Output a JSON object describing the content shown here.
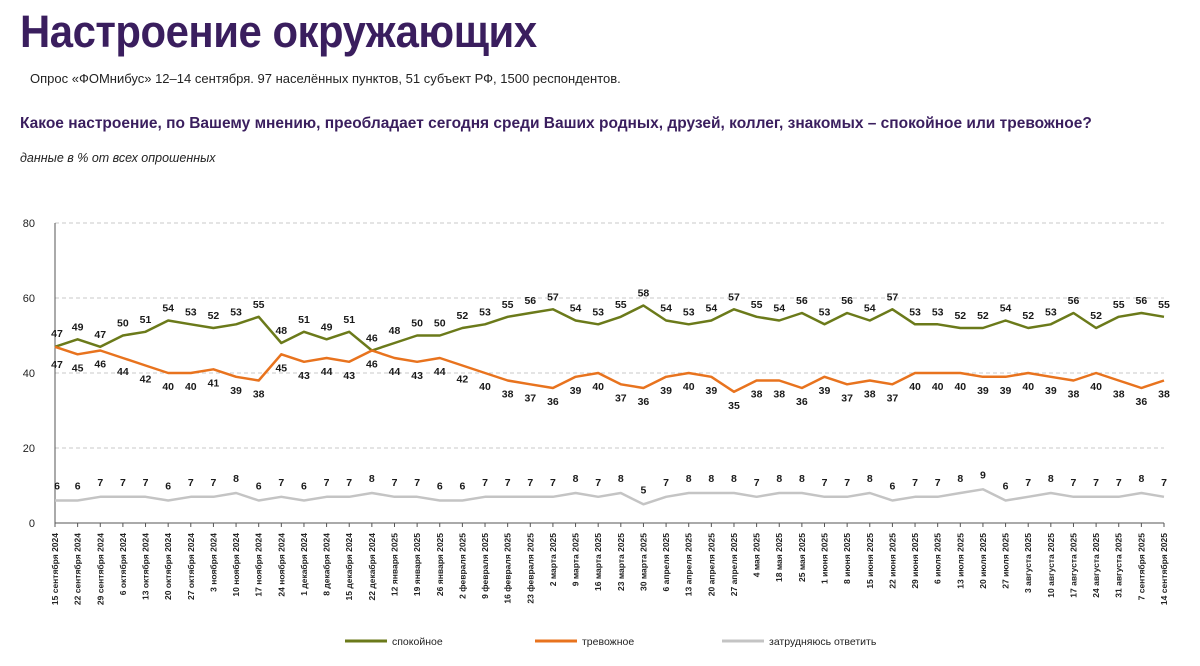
{
  "header": {
    "title": "Настроение окружающих",
    "subtitle": "Опрос «ФОМнибус» 12–14 сентября. 97 населённых пунктов, 51 субъект РФ, 1500 респондентов.",
    "question": "Какое настроение, по Вашему мнению, преобладает сегодня среди Ваших родных, друзей, коллег, знакомых – спокойное или тревожное?",
    "note": "данные в % от всех опрошенных"
  },
  "chart_data": {
    "type": "line",
    "title": "Настроение окружающих",
    "xlabel": "",
    "ylabel": "",
    "ylim": [
      0,
      80
    ],
    "yticks": [
      0,
      20,
      40,
      60,
      80
    ],
    "grid": "horizontal dashed",
    "legend_position": "bottom",
    "categories": [
      "15 сентября 2024",
      "22 сентября 2024",
      "29 сентября 2024",
      "6 октября 2024",
      "13 октября 2024",
      "20 октября 2024",
      "27 октября 2024",
      "3 ноября 2024",
      "10 ноября 2024",
      "17 ноября 2024",
      "24 ноября 2024",
      "1 декабря 2024",
      "8 декабря 2024",
      "15 декабря 2024",
      "22 декабря 2024",
      "12 января 2025",
      "19 января 2025",
      "26 января 2025",
      "2 февраля 2025",
      "9 февраля 2025",
      "16 февраля 2025",
      "23 февраля 2025",
      "2 марта 2025",
      "9 марта 2025",
      "16 марта 2025",
      "23 марта 2025",
      "30 марта 2025",
      "6 апреля 2025",
      "13 апреля 2025",
      "20 апреля 2025",
      "27 апреля 2025",
      "4 мая 2025",
      "18 мая 2025",
      "25 мая 2025",
      "1 июня 2025",
      "8 июня 2025",
      "15 июня 2025",
      "22 июня 2025",
      "29 июня 2025",
      "6 июля 2025",
      "13 июля 2025",
      "20 июля 2025",
      "27 июля 2025",
      "3 августа 2025",
      "10 августа 2025",
      "17 августа 2025",
      "24 августа 2025",
      "31 августа 2025",
      "7 сентября 2025",
      "14 сентября 2025"
    ],
    "series": [
      {
        "name": "спокойное",
        "color": "#6b7a1a",
        "values": [
          47,
          49,
          47,
          50,
          51,
          54,
          53,
          52,
          53,
          55,
          48,
          51,
          49,
          51,
          46,
          48,
          50,
          50,
          52,
          53,
          55,
          56,
          57,
          54,
          53,
          55,
          58,
          54,
          53,
          54,
          57,
          55,
          54,
          56,
          53,
          56,
          54,
          57,
          53,
          53,
          52,
          52,
          54,
          52,
          53,
          56,
          52,
          55,
          56,
          55
        ]
      },
      {
        "name": "тревожное",
        "color": "#e8731e",
        "values": [
          47,
          45,
          46,
          44,
          42,
          40,
          40,
          41,
          39,
          38,
          45,
          43,
          44,
          43,
          46,
          44,
          43,
          44,
          42,
          40,
          38,
          37,
          36,
          39,
          40,
          37,
          36,
          39,
          40,
          39,
          35,
          38,
          38,
          36,
          39,
          37,
          38,
          37,
          40,
          40,
          40,
          39,
          39,
          40,
          39,
          38,
          40,
          38,
          36,
          38
        ]
      },
      {
        "name": "затрудняюсь ответить",
        "color": "#c4c4c4",
        "values": [
          6,
          6,
          7,
          7,
          7,
          6,
          7,
          7,
          8,
          6,
          7,
          6,
          7,
          7,
          8,
          7,
          7,
          6,
          6,
          7,
          7,
          7,
          7,
          8,
          7,
          8,
          5,
          7,
          8,
          8,
          8,
          7,
          8,
          8,
          7,
          7,
          8,
          6,
          7,
          7,
          8,
          9,
          6,
          7,
          8,
          7,
          7,
          7,
          8,
          7
        ]
      }
    ]
  }
}
